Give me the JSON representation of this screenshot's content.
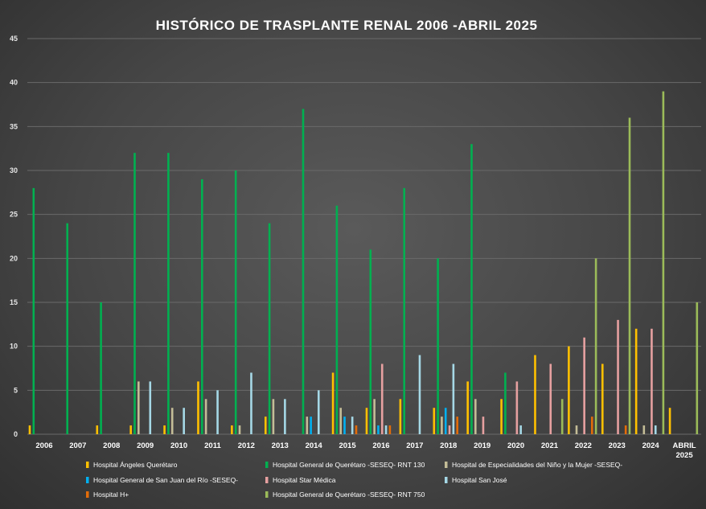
{
  "chart_data": {
    "type": "bar",
    "title": "HISTÓRICO DE TRASPLANTE RENAL 2006 -ABRIL 2025",
    "xlabel": "",
    "ylabel": "",
    "ylim": [
      0,
      45
    ],
    "yticks": [
      0,
      5,
      10,
      15,
      20,
      25,
      30,
      35,
      40,
      45
    ],
    "grid": true,
    "legend_position": "bottom",
    "categories": [
      "2006",
      "2007",
      "2008",
      "2009",
      "2010",
      "2011",
      "2012",
      "2013",
      "2014",
      "2015",
      "2016",
      "2017",
      "2018",
      "2019",
      "2020",
      "2021",
      "2022",
      "2023",
      "2024",
      "ABRIL 2025"
    ],
    "series": [
      {
        "name": "Hospital Ángeles Querétaro",
        "color": "#FFC000",
        "values": [
          1,
          0,
          1,
          1,
          1,
          6,
          1,
          2,
          0,
          7,
          3,
          4,
          3,
          6,
          4,
          9,
          10,
          8,
          12,
          3
        ]
      },
      {
        "name": "Hospital General de Querétaro -SESEQ- RNT 130",
        "color": "#00B050",
        "values": [
          28,
          24,
          15,
          32,
          32,
          29,
          30,
          24,
          37,
          26,
          21,
          28,
          20,
          33,
          7,
          0,
          0,
          0,
          0,
          0
        ]
      },
      {
        "name": "Hospital de Especialidades del Niño y la Mujer -SESEQ-",
        "color": "#C4BD97",
        "values": [
          0,
          0,
          0,
          6,
          3,
          4,
          1,
          4,
          2,
          3,
          4,
          0,
          2,
          4,
          0,
          0,
          1,
          0,
          1,
          0
        ]
      },
      {
        "name": "Hospital General de San Juan del Río -SESEQ-",
        "color": "#00B0F0",
        "values": [
          0,
          0,
          0,
          0,
          0,
          0,
          0,
          0,
          2,
          2,
          1,
          0,
          3,
          0,
          0,
          0,
          0,
          0,
          0,
          0
        ]
      },
      {
        "name": "Hospital Star Médica",
        "color": "#E6A0A0",
        "values": [
          0,
          0,
          0,
          0,
          0,
          0,
          0,
          0,
          0,
          0,
          8,
          0,
          1,
          2,
          6,
          8,
          11,
          13,
          12,
          0
        ]
      },
      {
        "name": "Hospital San José",
        "color": "#A5D8E6",
        "values": [
          0,
          0,
          0,
          6,
          3,
          5,
          7,
          4,
          5,
          2,
          1,
          9,
          8,
          0,
          1,
          0,
          0,
          0,
          1,
          0
        ]
      },
      {
        "name": "Hospital H+",
        "color": "#E36C09",
        "values": [
          0,
          0,
          0,
          0,
          0,
          0,
          0,
          0,
          0,
          1,
          1,
          0,
          2,
          0,
          0,
          0,
          2,
          1,
          0,
          0
        ]
      },
      {
        "name": "Hospital General de Querétaro -SESEQ- RNT 750",
        "color": "#9BBB59",
        "values": [
          0,
          0,
          0,
          0,
          0,
          0,
          0,
          0,
          0,
          0,
          0,
          0,
          0,
          0,
          0,
          4,
          20,
          36,
          39,
          15
        ]
      }
    ]
  }
}
